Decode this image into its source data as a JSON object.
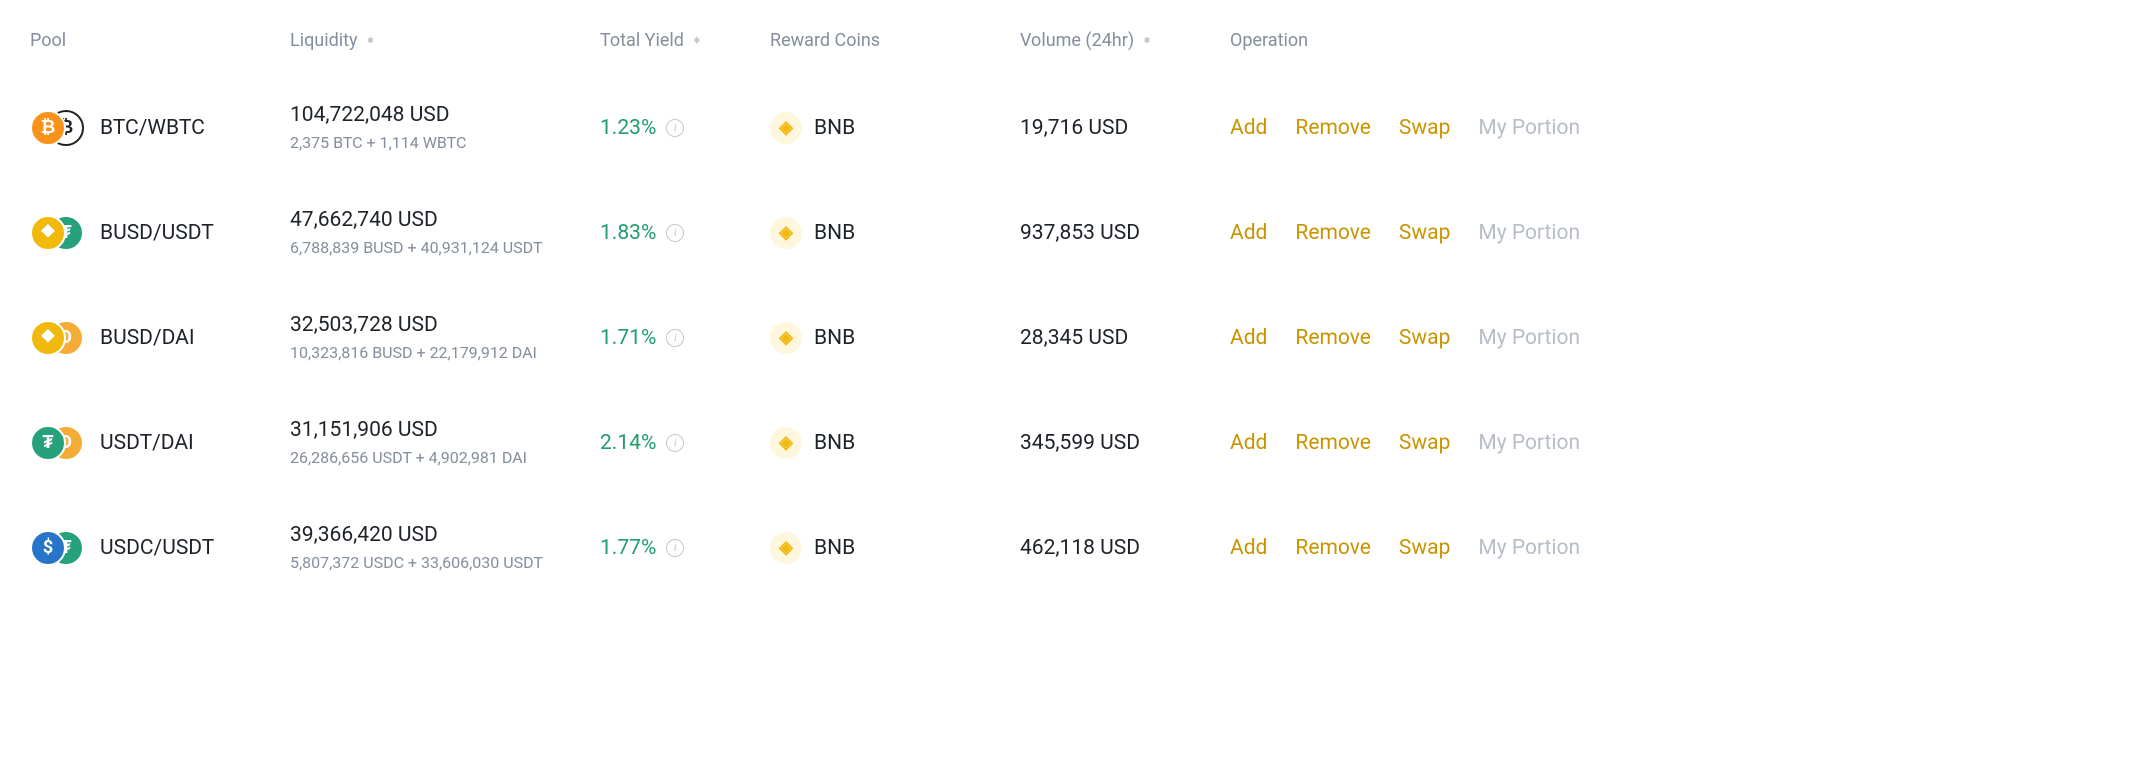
{
  "theme": {
    "text_primary": "#1e2329",
    "text_secondary": "#848e9c",
    "accent": "#c99400",
    "yield_green": "#219d6e",
    "disabled": "#b7bdc6",
    "background": "#ffffff"
  },
  "columns": {
    "pool": "Pool",
    "liquidity": "Liquidity",
    "yield": "Total Yield",
    "reward": "Reward Coins",
    "volume": "Volume (24hr)",
    "operation": "Operation"
  },
  "operations": {
    "add": "Add",
    "remove": "Remove",
    "swap": "Swap",
    "portion": "My Portion"
  },
  "rows": [
    {
      "pair": "BTC/WBTC",
      "coin1_bg": "#f7931a",
      "coin1_sym": "₿",
      "coin2_bg": "#ffffff",
      "coin2_border": "#1e2329",
      "coin2_fg": "#1e2329",
      "coin2_sym": "₿",
      "liquidity": "104,722,048 USD",
      "liquidity_sub": "2,375 BTC + 1,114 WBTC",
      "yield": "1.23%",
      "reward": "BNB",
      "volume": "19,716 USD"
    },
    {
      "pair": "BUSD/USDT",
      "coin1_bg": "#f0b90b",
      "coin1_sym": "⯁",
      "coin2_bg": "#26a17b",
      "coin2_sym": "₮",
      "liquidity": "47,662,740 USD",
      "liquidity_sub": "6,788,839 BUSD + 40,931,124 USDT",
      "yield": "1.83%",
      "reward": "BNB",
      "volume": "937,853 USD"
    },
    {
      "pair": "BUSD/DAI",
      "coin1_bg": "#f0b90b",
      "coin1_sym": "⯁",
      "coin2_bg": "#f5ac37",
      "coin2_sym": "Ð",
      "liquidity": "32,503,728 USD",
      "liquidity_sub": "10,323,816 BUSD + 22,179,912 DAI",
      "yield": "1.71%",
      "reward": "BNB",
      "volume": "28,345 USD"
    },
    {
      "pair": "USDT/DAI",
      "coin1_bg": "#26a17b",
      "coin1_sym": "₮",
      "coin2_bg": "#f5ac37",
      "coin2_sym": "Ð",
      "liquidity": "31,151,906 USD",
      "liquidity_sub": "26,286,656 USDT + 4,902,981 DAI",
      "yield": "2.14%",
      "reward": "BNB",
      "volume": "345,599 USD"
    },
    {
      "pair": "USDC/USDT",
      "coin1_bg": "#2775ca",
      "coin1_sym": "$",
      "coin2_bg": "#26a17b",
      "coin2_sym": "₮",
      "liquidity": "39,366,420 USD",
      "liquidity_sub": "5,807,372 USDC + 33,606,030 USDT",
      "yield": "1.77%",
      "reward": "BNB",
      "volume": "462,118 USD"
    }
  ]
}
